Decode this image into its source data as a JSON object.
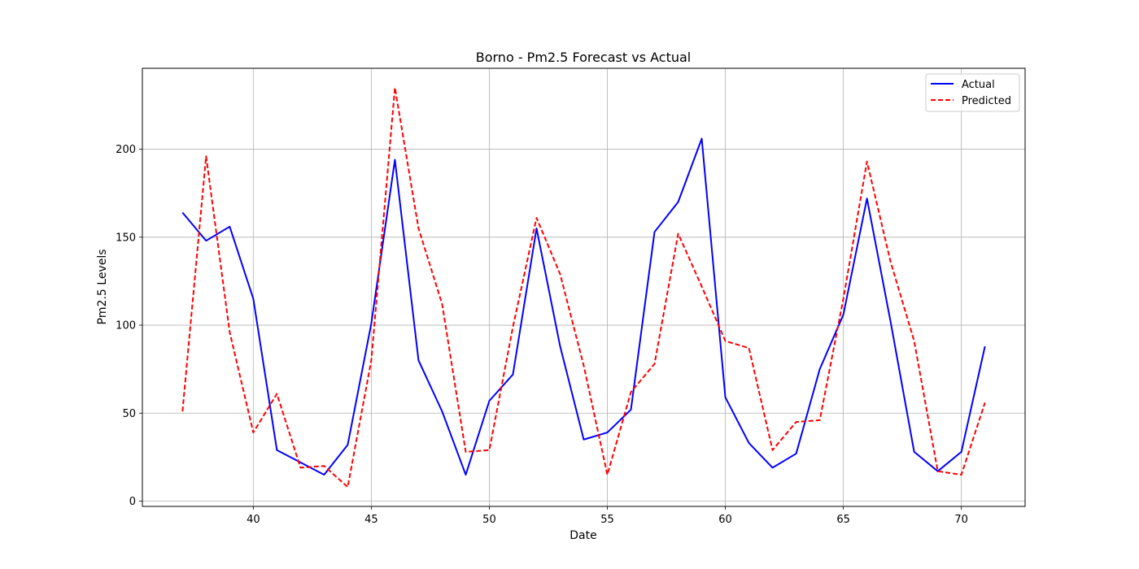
{
  "chart_data": {
    "type": "line",
    "title": "Borno - Pm2.5 Forecast vs Actual",
    "xlabel": "Date",
    "ylabel": "Pm2.5 Levels",
    "xlim": [
      35.3,
      72.7
    ],
    "ylim": [
      -3,
      246
    ],
    "xticks": [
      40,
      45,
      50,
      55,
      60,
      65,
      70
    ],
    "yticks": [
      0,
      50,
      100,
      150,
      200
    ],
    "grid": true,
    "legend_position": "top-right",
    "x": [
      37,
      38,
      39,
      40,
      41,
      42,
      43,
      44,
      45,
      46,
      47,
      48,
      49,
      50,
      51,
      52,
      53,
      54,
      55,
      56,
      57,
      58,
      59,
      60,
      61,
      62,
      63,
      64,
      65,
      66,
      67,
      68,
      69,
      70,
      71
    ],
    "series": [
      {
        "name": "Actual",
        "color": "#0000ff",
        "style": "solid",
        "values": [
          164,
          148,
          156,
          115,
          29,
          22,
          15,
          32,
          101,
          194,
          80,
          51,
          15,
          57,
          72,
          155,
          88,
          35,
          39,
          52,
          153,
          170,
          206,
          59,
          33,
          19,
          27,
          75,
          106,
          172,
          102,
          28,
          17,
          28,
          88
        ]
      },
      {
        "name": "Predicted",
        "color": "#ff0000",
        "style": "dashed",
        "values": [
          51,
          196,
          96,
          39,
          61,
          19,
          20,
          8,
          80,
          235,
          155,
          112,
          28,
          29,
          99,
          161,
          129,
          77,
          15,
          62,
          78,
          152,
          122,
          91,
          87,
          29,
          45,
          46,
          115,
          193,
          136,
          91,
          17,
          15,
          56
        ]
      }
    ]
  }
}
